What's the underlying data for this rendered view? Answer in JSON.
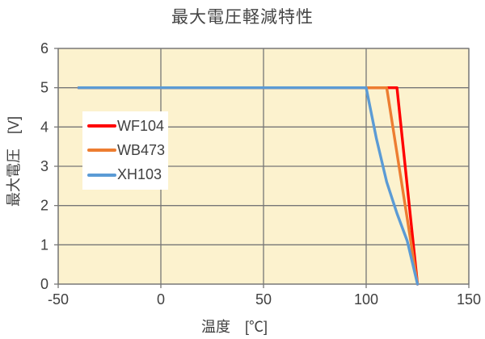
{
  "title": "最大電圧軽減特性",
  "chart_data": {
    "type": "line",
    "title": "最大電圧軽減特性",
    "xlabel": "温度　[℃]",
    "ylabel": "最大電圧　[V]",
    "xlim": [
      -50,
      150
    ],
    "ylim": [
      0,
      6
    ],
    "xticks": [
      -50,
      0,
      50,
      100,
      150
    ],
    "yticks": [
      0,
      1,
      2,
      3,
      4,
      5,
      6
    ],
    "grid": true,
    "legend_position": "inside-upper-left",
    "plot_bg_color": "#FCF2CE",
    "grid_color": "#767676",
    "text_color": "#404040",
    "series": [
      {
        "name": "WF104",
        "color": "#FF0000",
        "points": [
          [
            -40,
            5
          ],
          [
            115,
            5
          ],
          [
            125,
            0
          ]
        ]
      },
      {
        "name": "WB473",
        "color": "#ED7D31",
        "points": [
          [
            -40,
            5
          ],
          [
            110,
            5
          ],
          [
            125,
            0
          ]
        ]
      },
      {
        "name": "XH103",
        "color": "#5B9BD5",
        "points": [
          [
            -40,
            5
          ],
          [
            100,
            5
          ],
          [
            105,
            3.7
          ],
          [
            110,
            2.6
          ],
          [
            115,
            1.8
          ],
          [
            120,
            1.1
          ],
          [
            125,
            0
          ]
        ]
      }
    ]
  }
}
